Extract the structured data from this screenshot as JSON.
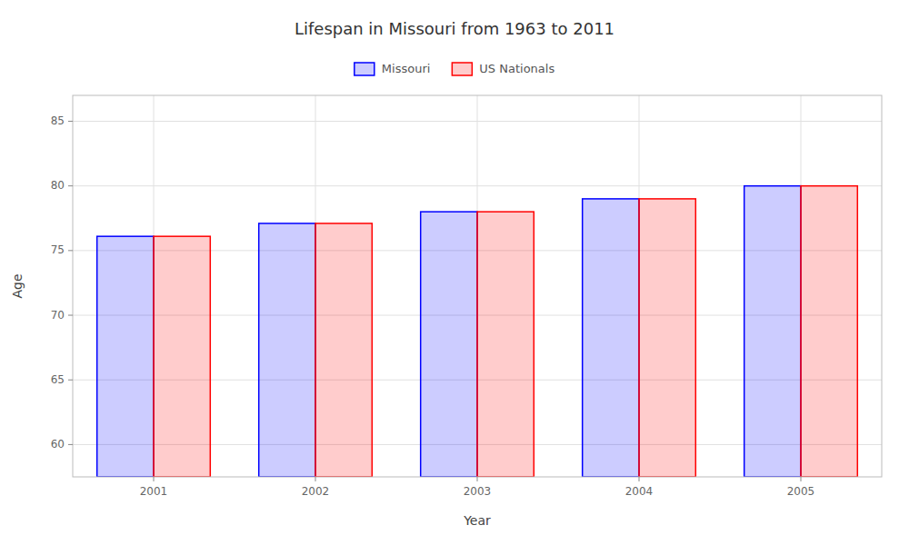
{
  "chart_data": {
    "type": "bar",
    "title": "Lifespan in Missouri from 1963 to 2011",
    "xlabel": "Year",
    "ylabel": "Age",
    "categories": [
      "2001",
      "2002",
      "2003",
      "2004",
      "2005"
    ],
    "series": [
      {
        "name": "Missouri",
        "color": "#0000ff",
        "values": [
          76.1,
          77.1,
          78.0,
          79.0,
          80.0
        ]
      },
      {
        "name": "US Nationals",
        "color": "#ff0000",
        "values": [
          76.1,
          77.1,
          78.0,
          79.0,
          80.0
        ]
      }
    ],
    "ylim": [
      57.5,
      87
    ],
    "yticks": [
      60,
      65,
      70,
      75,
      80,
      85
    ],
    "grid": true,
    "legend": "top"
  }
}
